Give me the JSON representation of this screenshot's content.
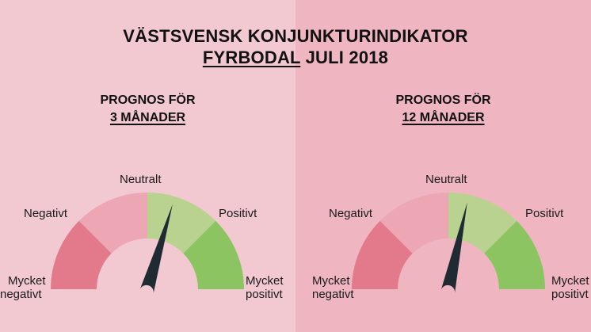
{
  "title": {
    "line1": "VÄSTSVENSK KONJUNKTURINDIKATOR",
    "region": "FYRBODAL",
    "period": "JULI 2018"
  },
  "gauges": [
    {
      "heading_line1": "PROGNOS FÖR",
      "heading_line2": "3 MÅNADER",
      "labels": {
        "very_negative_1": "Mycket",
        "very_negative_2": "negativt",
        "negative": "Negativt",
        "neutral": "Neutralt",
        "positive": "Positivt",
        "very_positive_1": "Mycket",
        "very_positive_2": "positivt"
      },
      "needle_fraction": 0.592
    },
    {
      "heading_line1": "PROGNOS FÖR",
      "heading_line2": "12 MÅNADER",
      "labels": {
        "very_negative_1": "Mycket",
        "very_negative_2": "negativt",
        "negative": "Negativt",
        "neutral": "Neutralt",
        "positive": "Positivt",
        "very_positive_1": "Mycket",
        "very_positive_2": "positivt"
      },
      "needle_fraction": 0.568
    }
  ],
  "colors": {
    "background_left": "#f3c9d1",
    "background_right": "#efb5c1",
    "segment_very_negative": "#e27a8c",
    "segment_negative": "#eda6b3",
    "segment_neutral": "#b9d28f",
    "segment_positive": "#8cc462",
    "needle": "#1f2a33"
  }
}
